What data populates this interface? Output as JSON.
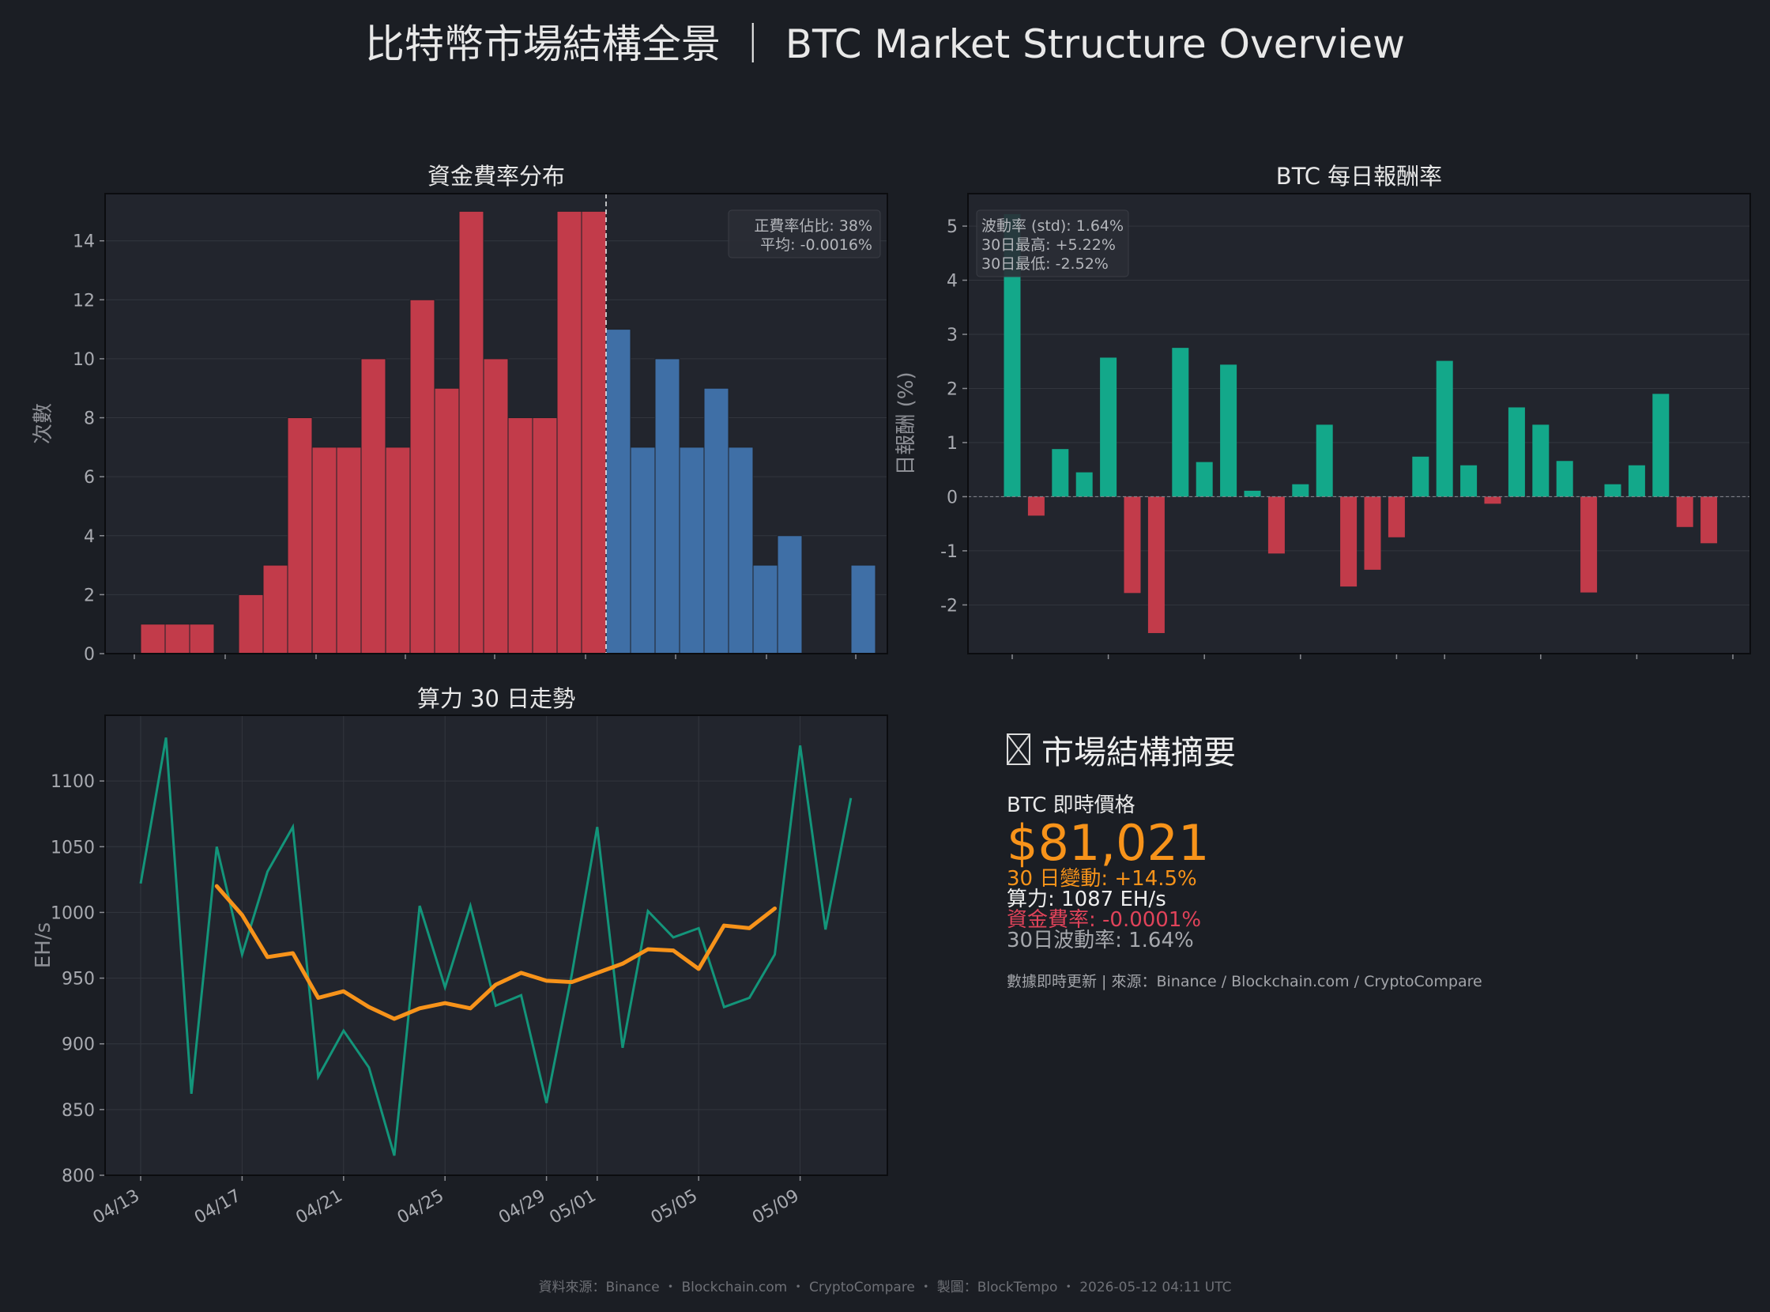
{
  "title": "比特幣市場結構全景 ｜ BTC Market Structure Overview",
  "colors": {
    "background": "#1b1e24",
    "panel": "#22252d",
    "negative": "#c23b4a",
    "positive_blue": "#3f6fa6",
    "positive_green": "#13a88a",
    "orange": "#f7931a",
    "teal_line": "#13957a"
  },
  "chart_data": [
    {
      "type": "bar",
      "title": "資金費率分布",
      "ylabel": "次數",
      "xlabel": "",
      "ylim": [
        0,
        15.6
      ],
      "yticks": [
        0,
        2,
        4,
        6,
        8,
        10,
        12,
        14
      ],
      "bins": 30,
      "counts": [
        1,
        1,
        1,
        0,
        2,
        3,
        8,
        7,
        7,
        10,
        7,
        12,
        9,
        15,
        10,
        8,
        8,
        15,
        15,
        11,
        7,
        10,
        7,
        9,
        7,
        3,
        4,
        0,
        0,
        3
      ],
      "zero_line_bin": 18,
      "annotation": [
        "正費率佔比: 38%",
        "平均: -0.0016%"
      ],
      "grid": true
    },
    {
      "type": "bar",
      "title": "BTC 每日報酬率",
      "ylabel": "日報酬 (%)",
      "xlabel": "",
      "ylim": [
        -2.9,
        5.6
      ],
      "yticks": [
        -2,
        -1,
        0,
        1,
        2,
        3,
        4,
        5
      ],
      "values": [
        5.22,
        -0.35,
        0.88,
        0.45,
        2.57,
        -1.78,
        -2.52,
        2.75,
        0.64,
        2.44,
        0.11,
        -1.05,
        0.23,
        1.33,
        -1.66,
        -1.35,
        -0.75,
        0.74,
        2.51,
        0.58,
        -0.13,
        1.65,
        1.33,
        0.66,
        -1.77,
        0.23,
        0.58,
        1.9,
        -0.56,
        -0.86
      ],
      "annotation": [
        "波動率 (std): 1.64%",
        "30日最高: +5.22%",
        "30日最低: -2.52%"
      ],
      "grid": true
    },
    {
      "type": "line",
      "title": "算力 30 日走勢",
      "ylabel": "EH/s",
      "xlabel": "",
      "ylim": [
        800,
        1150
      ],
      "yticks": [
        800,
        850,
        900,
        950,
        1000,
        1050,
        1100
      ],
      "xtick_labels": [
        {
          "label": "04/13",
          "day": 0
        },
        {
          "label": "04/17",
          "day": 4
        },
        {
          "label": "04/21",
          "day": 8
        },
        {
          "label": "04/25",
          "day": 12
        },
        {
          "label": "04/29",
          "day": 16
        },
        {
          "label": "05/01",
          "day": 18
        },
        {
          "label": "05/05",
          "day": 22
        },
        {
          "label": "05/09",
          "day": 26
        }
      ],
      "series": [
        {
          "values": [
            1022,
            1133,
            862,
            1050,
            968,
            1031,
            1065,
            875,
            910,
            882,
            815,
            1005,
            943,
            1005,
            929,
            937,
            855,
            953,
            1065,
            897,
            1001,
            981,
            988,
            928,
            935,
            968,
            1127,
            987,
            1087
          ]
        },
        {
          "start_day": 3,
          "values": [
            1020,
            998,
            966,
            969,
            935,
            940,
            928,
            919,
            927,
            931,
            927,
            945,
            954,
            948,
            947,
            954,
            961,
            972,
            971,
            957,
            990,
            988,
            1003
          ]
        }
      ],
      "grid": true
    }
  ],
  "summary": {
    "title": "市場結構摘要",
    "price_label": "BTC 即時價格",
    "price": "$81,021",
    "change_30d": "30 日變動: +14.5%",
    "hashrate": "算力: 1087 EH/s",
    "funding_rate": "資金費率: -0.0001%",
    "volatility": "30日波動率: 1.64%",
    "sources": "數據即時更新 | 來源：Binance / Blockchain.com / CryptoCompare"
  },
  "footer": "資料來源：Binance ・ Blockchain.com ・ CryptoCompare ・ 製圖：BlockTempo ・ 2026-05-12 04:11 UTC"
}
